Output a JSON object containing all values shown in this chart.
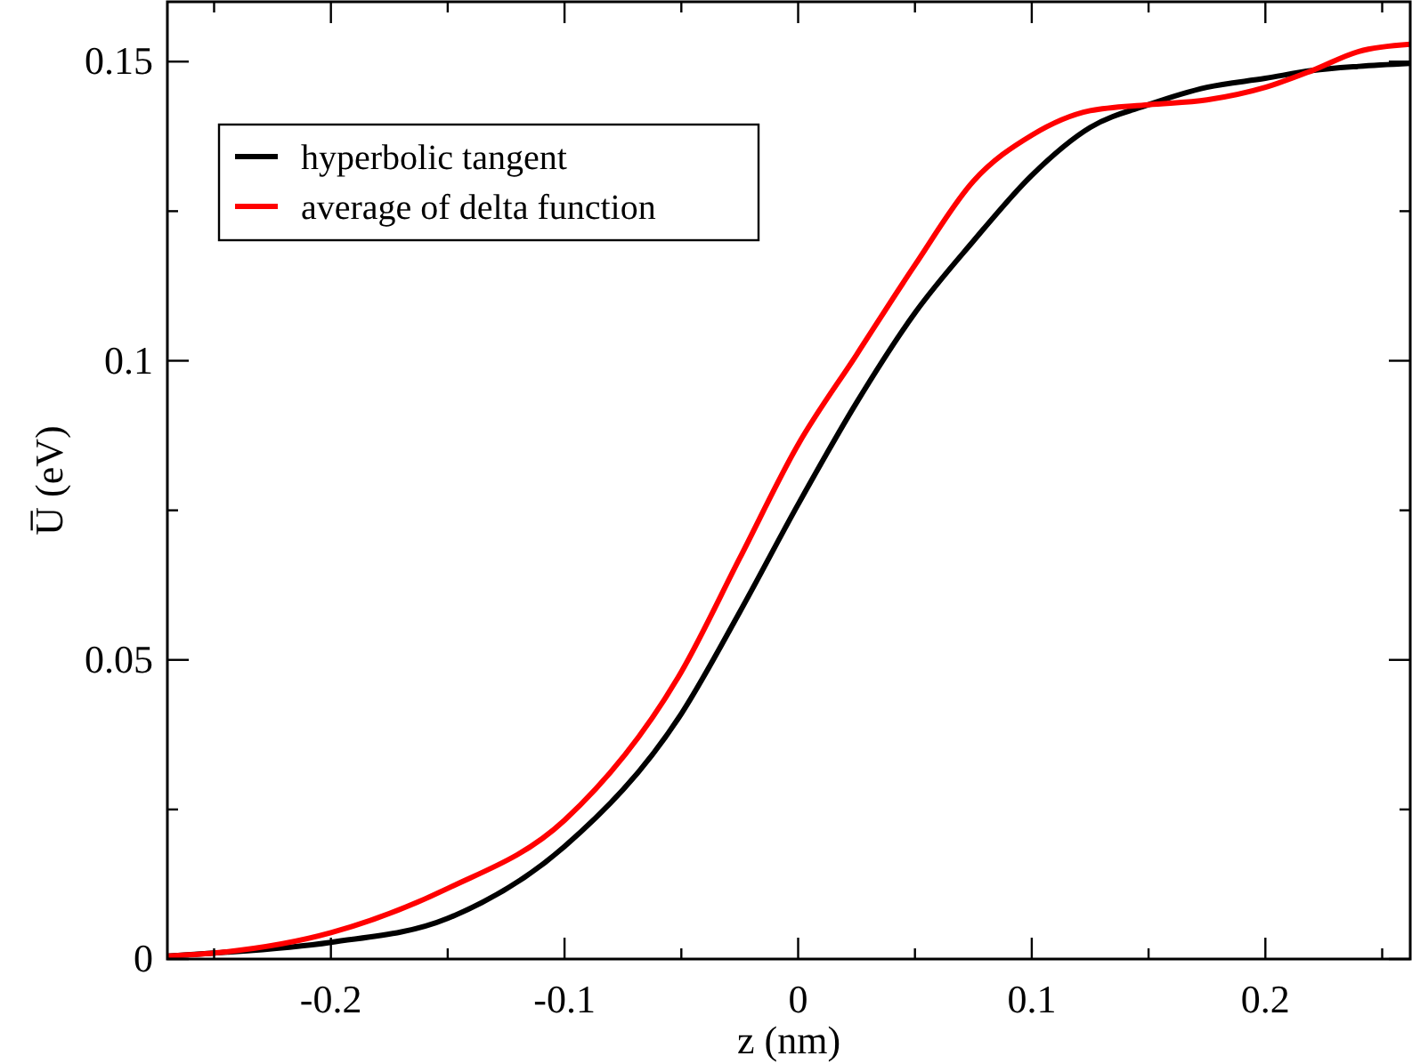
{
  "chart_data": {
    "type": "line",
    "xlabel": "z (nm)",
    "ylabel": "U̅ (eV)",
    "xlim": [
      -0.27,
      0.262
    ],
    "ylim": [
      0,
      0.16
    ],
    "xticks": [
      {
        "value": -0.25,
        "label": null
      },
      -0.2,
      {
        "value": -0.15,
        "label": null
      },
      -0.1,
      {
        "value": -0.05,
        "label": null
      },
      0,
      {
        "value": 0.05,
        "label": null
      },
      0.1,
      {
        "value": 0.15,
        "label": null
      },
      0.2,
      {
        "value": 0.25,
        "label": null
      }
    ],
    "yticks": [
      0,
      {
        "value": 0.025,
        "label": null
      },
      0.05,
      {
        "value": 0.075,
        "label": null
      },
      0.1,
      {
        "value": 0.125,
        "label": null
      },
      0.15
    ],
    "grid": false,
    "legend": "top left",
    "line_style": "solid",
    "marker": "none",
    "x": [
      -0.27,
      -0.25,
      -0.2,
      -0.15,
      -0.1,
      -0.05,
      -0.025,
      0,
      0.025,
      0.05,
      0.075,
      0.1,
      0.125,
      0.15,
      0.175,
      0.2,
      0.22,
      0.24,
      0.262
    ],
    "series": [
      {
        "name": "hyperbolic tangent",
        "color": "#000000",
        "values": [
          0.0005,
          0.001,
          0.0028,
          0.0068,
          0.0188,
          0.041,
          0.058,
          0.076,
          0.093,
          0.108,
          0.12,
          0.131,
          0.139,
          0.1428,
          0.1457,
          0.1472,
          0.1485,
          0.1492,
          0.1497
        ]
      },
      {
        "name": "average of delta function",
        "color": "#ff0000",
        "values": [
          0.0005,
          0.001,
          0.0044,
          0.0118,
          0.0232,
          0.048,
          0.067,
          0.086,
          0.101,
          0.116,
          0.13,
          0.1377,
          0.1418,
          0.1428,
          0.1436,
          0.1457,
          0.1485,
          0.1517,
          0.1529
        ]
      }
    ]
  }
}
